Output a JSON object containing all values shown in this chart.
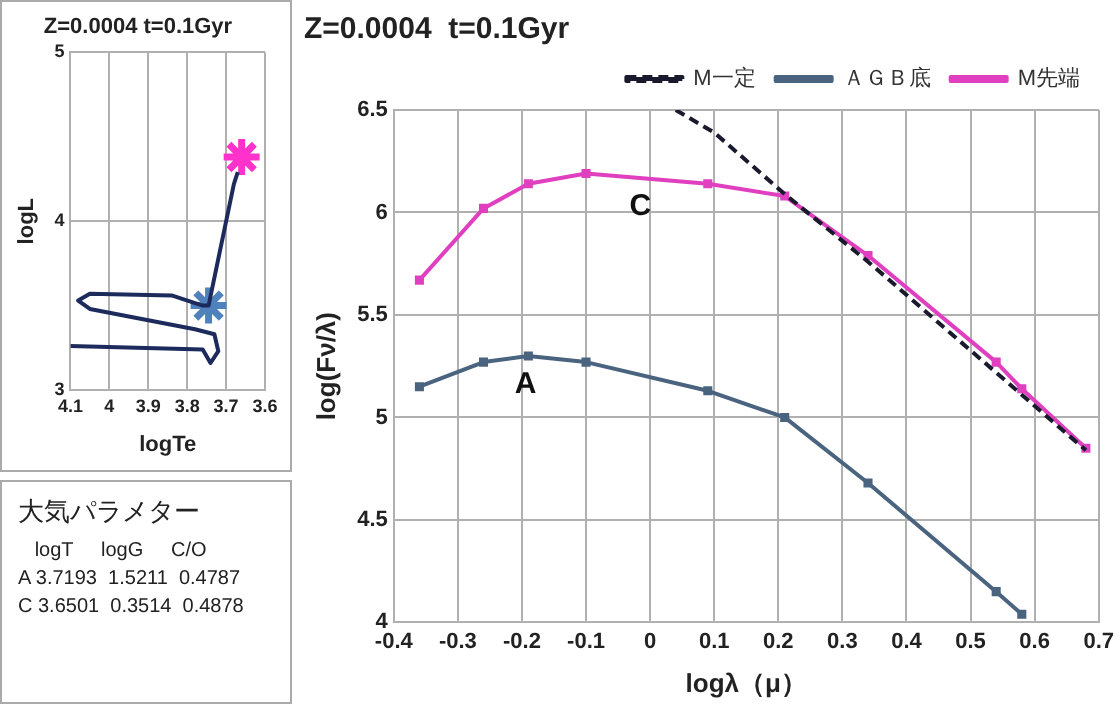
{
  "chart_data": [
    {
      "type": "line",
      "title": "Z=0.0004 t=0.1Gyr",
      "xlabel": "logTe",
      "ylabel": "logL",
      "xlim": [
        4.1,
        3.6
      ],
      "xticks": [
        4.1,
        4,
        3.9,
        3.8,
        3.7,
        3.6
      ],
      "ylim": [
        3,
        5
      ],
      "yticks": [
        3,
        4,
        5
      ],
      "grid": true,
      "legend": false,
      "series": [
        {
          "type": "line",
          "color": "#1c2b5c",
          "marker": "none",
          "x": [
            4.1,
            3.76,
            3.74,
            3.72,
            3.73,
            3.78,
            4.05,
            4.08,
            4.05,
            3.84,
            3.76,
            3.745,
            3.68,
            3.67
          ],
          "values": [
            3.26,
            3.24,
            3.16,
            3.23,
            3.33,
            3.36,
            3.48,
            3.53,
            3.57,
            3.56,
            3.5,
            3.5,
            4.22,
            4.29
          ]
        },
        {
          "type": "scatter",
          "color": "#4f81bd",
          "marker": "cross",
          "x": [
            3.745
          ],
          "values": [
            3.5
          ]
        },
        {
          "type": "scatter",
          "color": "#ff33cc",
          "marker": "cross",
          "x": [
            3.66
          ],
          "values": [
            4.38
          ]
        }
      ]
    },
    {
      "type": "other",
      "title": "大気パラメター",
      "annotations": [
        "   logT     logG     C/O",
        "A 3.7193  1.5211  0.4787",
        "C 3.6501  0.3514  0.4878"
      ]
    },
    {
      "type": "line",
      "title": "Z=0.0004  t=0.1Gyr",
      "xlabel": "logλ（μ）",
      "ylabel": "log(Fν/λ)",
      "xlim": [
        -0.4,
        0.7
      ],
      "xticks": [
        -0.4,
        -0.3,
        -0.2,
        -0.1,
        0,
        0.1,
        0.2,
        0.3,
        0.4,
        0.5,
        0.6,
        0.7
      ],
      "ylim": [
        4,
        6.5
      ],
      "yticks": [
        4,
        4.5,
        5,
        5.5,
        6,
        6.5
      ],
      "grid": true,
      "legend": "top right",
      "annotations": [
        "C",
        "A"
      ],
      "series": [
        {
          "name": "M一定",
          "type": "line",
          "color": "#1a1a2e",
          "marker": "none",
          "line_style": "dashed",
          "x": [
            0.04,
            0.1,
            0.21,
            0.34,
            0.68
          ],
          "values": [
            6.5,
            6.39,
            6.09,
            5.76,
            4.84
          ]
        },
        {
          "name": "ＡＧＢ底",
          "type": "line",
          "color": "#4a6480",
          "marker": "square",
          "x": [
            -0.36,
            -0.26,
            -0.19,
            -0.1,
            0.09,
            0.21,
            0.34,
            0.54,
            0.58
          ],
          "values": [
            5.15,
            5.27,
            5.3,
            5.27,
            5.13,
            5.0,
            4.68,
            4.15,
            4.04
          ]
        },
        {
          "name": "M先端",
          "type": "line",
          "color": "#e040c0",
          "marker": "square",
          "x": [
            -0.36,
            -0.26,
            -0.19,
            -0.1,
            0.09,
            0.21,
            0.34,
            0.54,
            0.58,
            0.68
          ],
          "values": [
            5.67,
            6.02,
            6.14,
            6.19,
            6.14,
            6.08,
            5.79,
            5.27,
            5.14,
            4.85
          ]
        }
      ]
    }
  ]
}
